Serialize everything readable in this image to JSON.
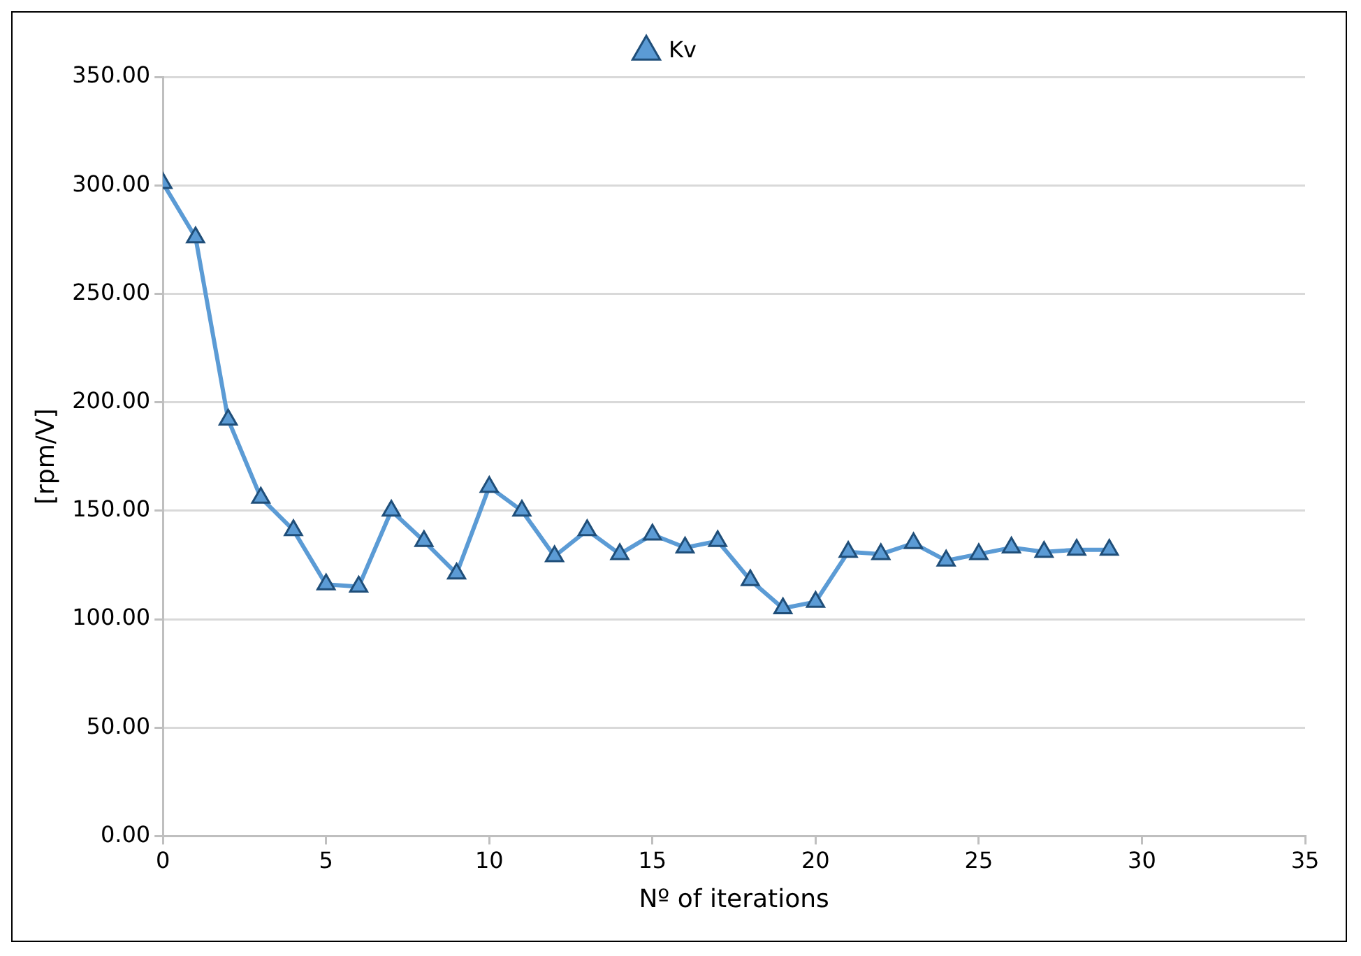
{
  "chart_data": {
    "type": "line",
    "xlabel": "Nº of iterations",
    "ylabel": "[rpm/V]",
    "x": [
      0,
      1,
      2,
      3,
      4,
      5,
      6,
      7,
      8,
      9,
      10,
      11,
      12,
      13,
      14,
      15,
      16,
      17,
      18,
      19,
      20,
      21,
      22,
      23,
      24,
      25,
      26,
      27,
      28,
      29
    ],
    "series": [
      {
        "name": "Kv",
        "color": "#5b9bd5",
        "values": [
          301,
          276,
          192,
          156,
          141,
          116,
          115,
          150,
          136,
          121,
          161,
          150,
          129,
          141,
          130,
          139,
          133,
          136,
          118,
          105,
          108,
          131,
          130,
          135,
          127,
          130,
          133,
          131,
          132,
          132
        ]
      }
    ],
    "xlim": [
      0,
      35
    ],
    "xticks": [
      0,
      5,
      10,
      15,
      20,
      25,
      30,
      35
    ],
    "ylim": [
      0,
      350
    ],
    "yticks": [
      {
        "value": 0,
        "label": "0.00"
      },
      {
        "value": 50,
        "label": "50.00"
      },
      {
        "value": 100,
        "label": "100.00"
      },
      {
        "value": 150,
        "label": "150.00"
      },
      {
        "value": 200,
        "label": "200.00"
      },
      {
        "value": 250,
        "label": "250.00"
      },
      {
        "value": 300,
        "label": "300.00"
      },
      {
        "value": 350,
        "label": "350.00"
      }
    ],
    "grid": "y",
    "legend": "top",
    "marker": "triangle",
    "line_style": "solid"
  }
}
